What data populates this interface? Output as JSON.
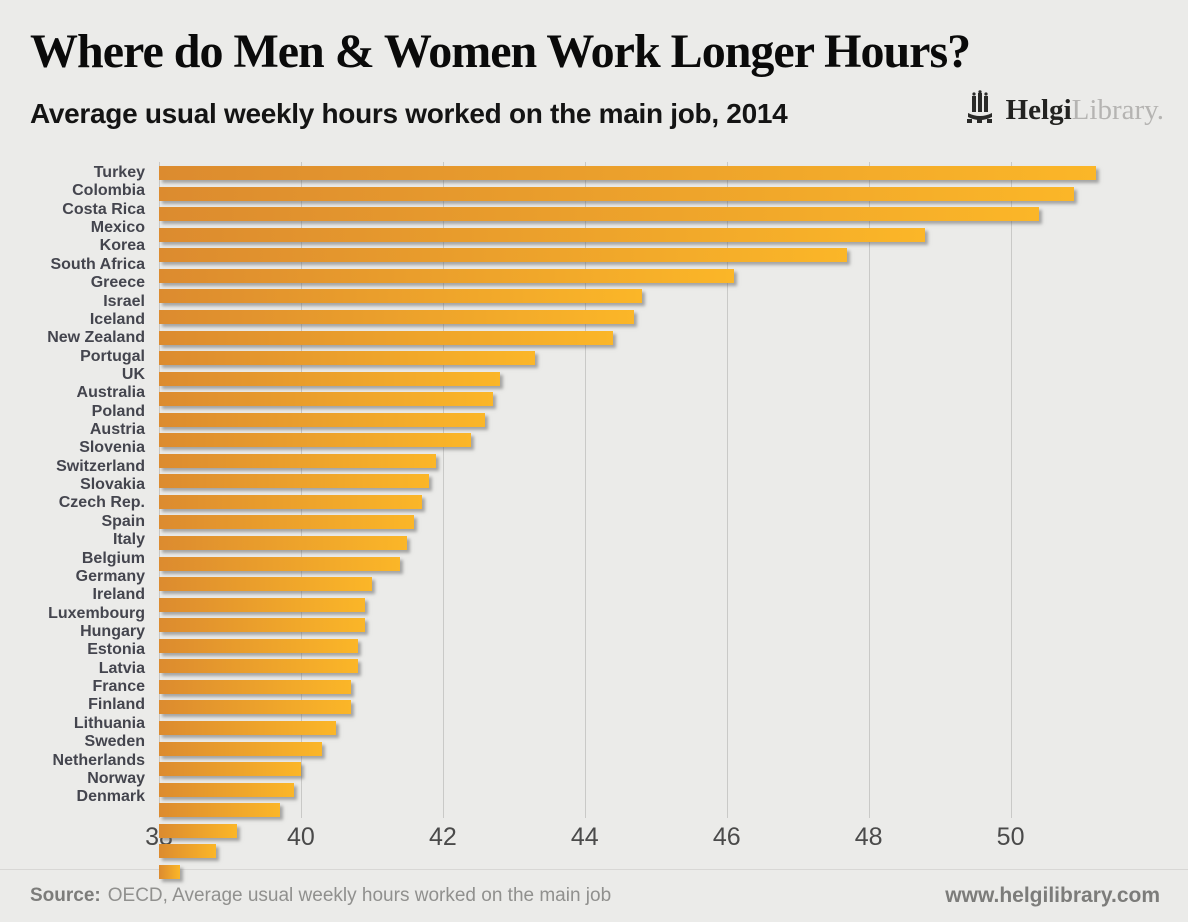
{
  "header": {
    "title": "Where do Men & Women Work Longer Hours?",
    "subtitle": "Average usual weekly hours worked on the main job, 2014",
    "logo": {
      "icon": "library-logo-icon",
      "brand_bold": "Helgi",
      "brand_light": "Library."
    }
  },
  "chart_data": {
    "type": "bar",
    "orientation": "horizontal",
    "title": "Where do Men & Women Work Longer Hours?",
    "subtitle": "Average usual weekly hours worked on the main job, 2014",
    "unit": "hours per week",
    "xlim": [
      38,
      52.5
    ],
    "x_ticks": [
      38,
      40,
      42,
      44,
      46,
      48,
      50
    ],
    "grid": true,
    "legend": "none",
    "bar_color_start": "#dc8b2f",
    "bar_color_end": "#fbb628",
    "categories": [
      "Turkey",
      "Colombia",
      "Costa Rica",
      "Mexico",
      "Korea",
      "South Africa",
      "Greece",
      "Israel",
      "Iceland",
      "New Zealand",
      "Portugal",
      "UK",
      "Australia",
      "Poland",
      "Austria",
      "Slovenia",
      "Switzerland",
      "Slovakia",
      "Czech Rep.",
      "Spain",
      "Italy",
      "Belgium",
      "Germany",
      "Ireland",
      "Luxembourg",
      "Hungary",
      "Estonia",
      "Latvia",
      "France",
      "Finland",
      "Lithuania",
      "Sweden",
      "Netherlands",
      "Norway",
      "Denmark"
    ],
    "values": [
      51.2,
      50.9,
      50.4,
      48.8,
      47.7,
      46.1,
      44.8,
      44.7,
      44.4,
      43.3,
      42.8,
      42.7,
      42.6,
      42.4,
      41.9,
      41.8,
      41.7,
      41.6,
      41.5,
      41.4,
      41.0,
      40.9,
      40.9,
      40.8,
      40.8,
      40.7,
      40.7,
      40.5,
      40.3,
      40.0,
      39.9,
      39.7,
      39.1,
      38.8,
      38.3
    ]
  },
  "footer": {
    "source_label": "Source:",
    "source_text": "OECD, Average usual weekly hours worked on the main job",
    "website": "www.helgilibrary.com"
  }
}
